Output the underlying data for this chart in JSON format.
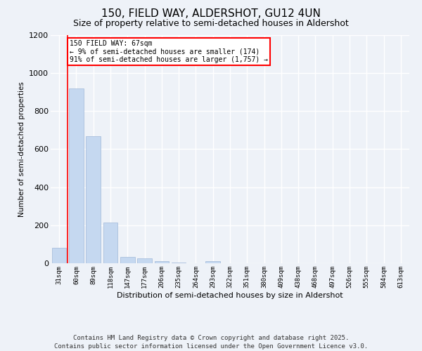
{
  "title1": "150, FIELD WAY, ALDERSHOT, GU12 4UN",
  "title2": "Size of property relative to semi-detached houses in Aldershot",
  "xlabel": "Distribution of semi-detached houses by size in Aldershot",
  "ylabel": "Number of semi-detached properties",
  "categories": [
    "31sqm",
    "60sqm",
    "89sqm",
    "118sqm",
    "147sqm",
    "177sqm",
    "206sqm",
    "235sqm",
    "264sqm",
    "293sqm",
    "322sqm",
    "351sqm",
    "380sqm",
    "409sqm",
    "438sqm",
    "468sqm",
    "497sqm",
    "526sqm",
    "555sqm",
    "584sqm",
    "613sqm"
  ],
  "values": [
    80,
    920,
    670,
    215,
    35,
    25,
    10,
    5,
    0,
    10,
    0,
    0,
    0,
    0,
    0,
    0,
    0,
    0,
    0,
    0,
    0
  ],
  "bar_color": "#c5d8f0",
  "bar_edge_color": "#a0b8d8",
  "vline_x": 0.5,
  "vline_color": "red",
  "annotation_text": "150 FIELD WAY: 67sqm\n← 9% of semi-detached houses are smaller (174)\n91% of semi-detached houses are larger (1,757) →",
  "annotation_box_color": "white",
  "annotation_box_edge_color": "red",
  "ylim": [
    0,
    1200
  ],
  "yticks": [
    0,
    200,
    400,
    600,
    800,
    1000,
    1200
  ],
  "footer": "Contains HM Land Registry data © Crown copyright and database right 2025.\nContains public sector information licensed under the Open Government Licence v3.0.",
  "bg_color": "#eef2f8",
  "plot_bg_color": "#eef2f8",
  "grid_color": "white",
  "title_fontsize": 11,
  "subtitle_fontsize": 9,
  "footer_fontsize": 6.5
}
